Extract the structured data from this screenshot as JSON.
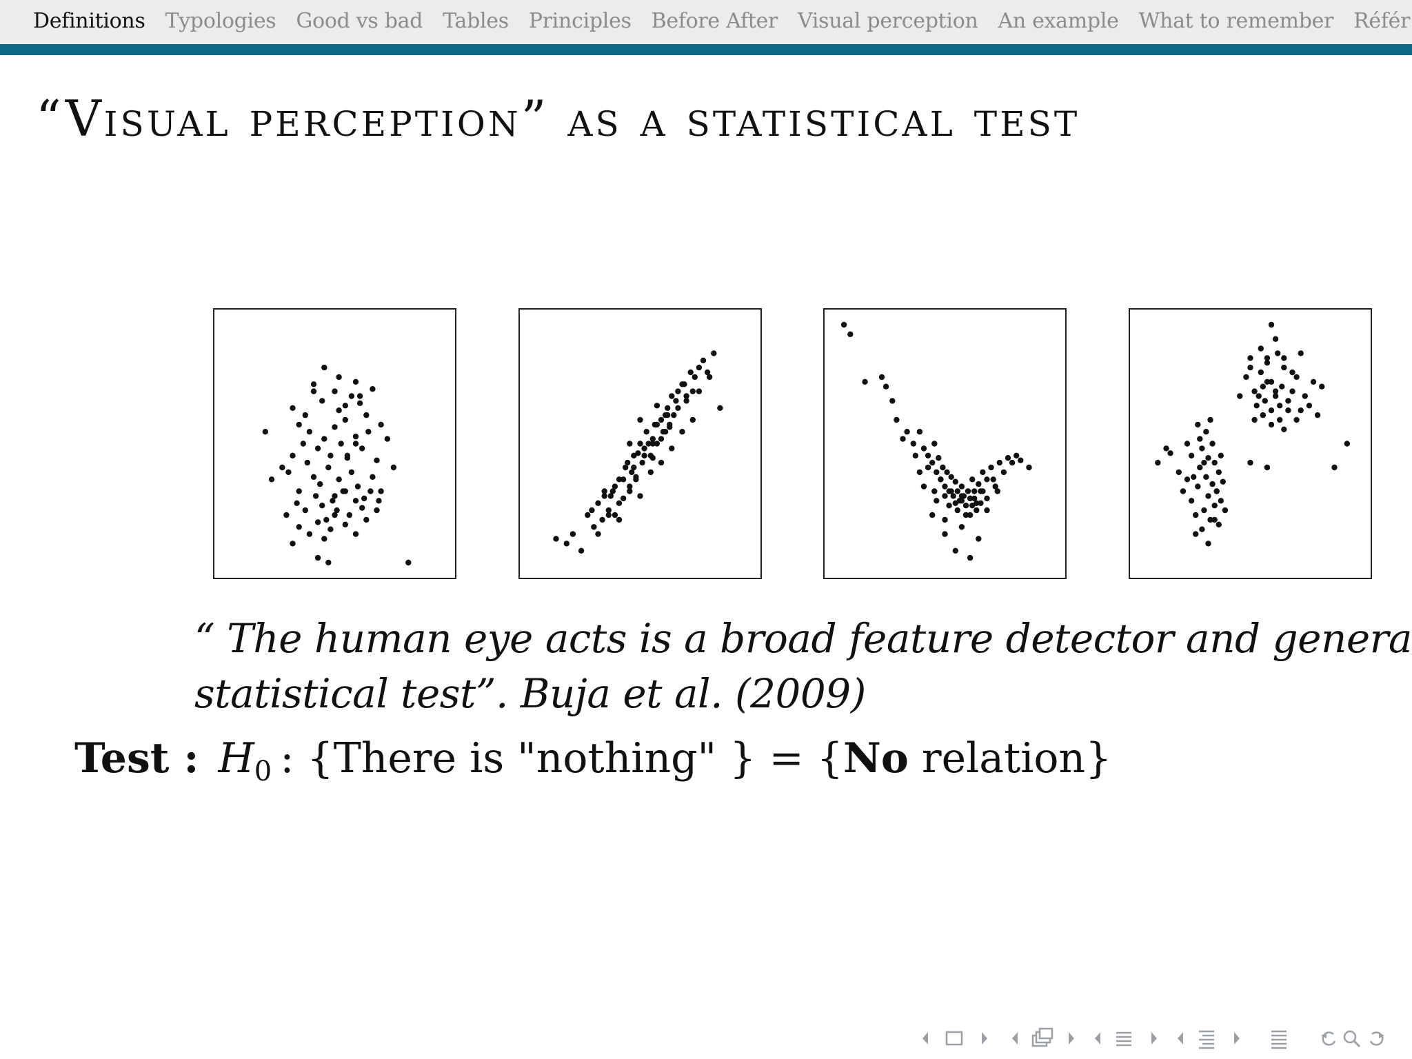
{
  "nav": {
    "items": [
      {
        "label": "Definitions",
        "active": true
      },
      {
        "label": "Typologies",
        "active": false
      },
      {
        "label": "Good vs bad",
        "active": false
      },
      {
        "label": "Tables",
        "active": false
      },
      {
        "label": "Principles",
        "active": false
      },
      {
        "label": "Before After",
        "active": false
      },
      {
        "label": "Visual perception",
        "active": false
      },
      {
        "label": "An example",
        "active": false
      },
      {
        "label": "What to remember",
        "active": false
      },
      {
        "label": "Référ",
        "active": false
      }
    ],
    "accent_color": "#0d6a86"
  },
  "slide": {
    "title": "“Visual perception” as a statistical test",
    "quote": {
      "line1": "“ The human eye acts is a broad feature detector and general",
      "line2": "statistical test”. Buja et al. (2009)"
    },
    "test": {
      "label": "Test :",
      "h_symbol": "H",
      "h_subscript": "0",
      "part1": ": {There is \"nothing\" } = {",
      "strong": "No",
      "part2": " relation}"
    }
  },
  "chart_data": [
    {
      "type": "scatter",
      "x": [
        0.17,
        0.3,
        0.33,
        0.4,
        0.45,
        0.44,
        0.5,
        0.52,
        0.55,
        0.58,
        0.6,
        0.62,
        0.65,
        0.68,
        0.72,
        0.25,
        0.3,
        0.35,
        0.38,
        0.42,
        0.45,
        0.48,
        0.5,
        0.53,
        0.56,
        0.6,
        0.63,
        0.66,
        0.7,
        0.75,
        0.2,
        0.28,
        0.33,
        0.37,
        0.4,
        0.43,
        0.47,
        0.5,
        0.52,
        0.55,
        0.58,
        0.61,
        0.64,
        0.68,
        0.72,
        0.78,
        0.27,
        0.32,
        0.36,
        0.41,
        0.44,
        0.46,
        0.49,
        0.51,
        0.54,
        0.57,
        0.6,
        0.63,
        0.67,
        0.71,
        0.33,
        0.38,
        0.42,
        0.45,
        0.48,
        0.5,
        0.55,
        0.6,
        0.65,
        0.7,
        0.3,
        0.42,
        0.47,
        0.36,
        0.4,
        0.52,
        0.55,
        0.62,
        0.85,
        0.56,
        0.6
      ],
      "y": [
        0.55,
        0.65,
        0.58,
        0.75,
        0.82,
        0.68,
        0.72,
        0.78,
        0.6,
        0.7,
        0.76,
        0.67,
        0.62,
        0.73,
        0.58,
        0.4,
        0.45,
        0.5,
        0.55,
        0.48,
        0.52,
        0.45,
        0.57,
        0.5,
        0.44,
        0.53,
        0.48,
        0.55,
        0.43,
        0.52,
        0.35,
        0.38,
        0.3,
        0.42,
        0.36,
        0.33,
        0.4,
        0.28,
        0.35,
        0.3,
        0.38,
        0.32,
        0.27,
        0.36,
        0.3,
        0.4,
        0.2,
        0.25,
        0.22,
        0.28,
        0.24,
        0.18,
        0.26,
        0.22,
        0.3,
        0.2,
        0.26,
        0.23,
        0.3,
        0.26,
        0.15,
        0.12,
        0.17,
        0.1,
        0.14,
        0.2,
        0.16,
        0.12,
        0.18,
        0.22,
        0.08,
        0.02,
        0.0,
        0.62,
        0.72,
        0.64,
        0.66,
        0.7,
        0.0,
        0.45,
        0.5
      ],
      "title": "",
      "xlabel": "",
      "ylabel": "",
      "grid": false
    },
    {
      "type": "scatter",
      "x": [
        0.1,
        0.15,
        0.18,
        0.22,
        0.25,
        0.28,
        0.3,
        0.32,
        0.33,
        0.35,
        0.37,
        0.38,
        0.4,
        0.42,
        0.43,
        0.45,
        0.46,
        0.47,
        0.48,
        0.5,
        0.51,
        0.52,
        0.53,
        0.55,
        0.56,
        0.57,
        0.58,
        0.6,
        0.61,
        0.62,
        0.63,
        0.64,
        0.65,
        0.66,
        0.68,
        0.7,
        0.72,
        0.74,
        0.75,
        0.76,
        0.78,
        0.8,
        0.82,
        0.85,
        0.3,
        0.35,
        0.4,
        0.45,
        0.5,
        0.55,
        0.6,
        0.65,
        0.7,
        0.75,
        0.27,
        0.36,
        0.42,
        0.47,
        0.52,
        0.56,
        0.6,
        0.64,
        0.68,
        0.72,
        0.33,
        0.38,
        0.44,
        0.49,
        0.54,
        0.58,
        0.63,
        0.67,
        0.71,
        0.78,
        0.83,
        0.88,
        0.4,
        0.48,
        0.56,
        0.62,
        0.5,
        0.58,
        0.45
      ],
      "y": [
        0.1,
        0.08,
        0.12,
        0.05,
        0.2,
        0.15,
        0.25,
        0.18,
        0.28,
        0.22,
        0.3,
        0.2,
        0.35,
        0.27,
        0.4,
        0.32,
        0.38,
        0.45,
        0.36,
        0.5,
        0.42,
        0.48,
        0.55,
        0.45,
        0.52,
        0.58,
        0.5,
        0.6,
        0.55,
        0.62,
        0.65,
        0.58,
        0.7,
        0.62,
        0.72,
        0.75,
        0.68,
        0.8,
        0.72,
        0.78,
        0.82,
        0.85,
        0.8,
        0.88,
        0.12,
        0.2,
        0.18,
        0.3,
        0.28,
        0.38,
        0.42,
        0.48,
        0.55,
        0.6,
        0.22,
        0.28,
        0.35,
        0.4,
        0.45,
        0.5,
        0.52,
        0.57,
        0.65,
        0.7,
        0.3,
        0.32,
        0.42,
        0.46,
        0.5,
        0.58,
        0.62,
        0.68,
        0.75,
        0.72,
        0.78,
        0.65,
        0.25,
        0.35,
        0.44,
        0.55,
        0.6,
        0.66,
        0.5
      ],
      "title": "",
      "xlabel": "",
      "ylabel": "",
      "grid": false
    },
    {
      "type": "scatter",
      "x": [
        0.02,
        0.05,
        0.12,
        0.2,
        0.22,
        0.25,
        0.27,
        0.3,
        0.32,
        0.35,
        0.38,
        0.4,
        0.42,
        0.44,
        0.45,
        0.46,
        0.47,
        0.48,
        0.49,
        0.5,
        0.51,
        0.52,
        0.53,
        0.54,
        0.55,
        0.56,
        0.57,
        0.58,
        0.59,
        0.6,
        0.61,
        0.62,
        0.63,
        0.64,
        0.65,
        0.66,
        0.67,
        0.68,
        0.7,
        0.72,
        0.74,
        0.76,
        0.78,
        0.8,
        0.82,
        0.84,
        0.86,
        0.9,
        0.4,
        0.45,
        0.5,
        0.55,
        0.6,
        0.65,
        0.7,
        0.36,
        0.42,
        0.48,
        0.53,
        0.58,
        0.63,
        0.68,
        0.73,
        0.44,
        0.5,
        0.56,
        0.62,
        0.67,
        0.38,
        0.46,
        0.52,
        0.58,
        0.64,
        0.7,
        0.75,
        0.5,
        0.58,
        0.66,
        0.55,
        0.62
      ],
      "y": [
        1.0,
        0.96,
        0.76,
        0.78,
        0.74,
        0.68,
        0.6,
        0.52,
        0.55,
        0.5,
        0.55,
        0.48,
        0.45,
        0.42,
        0.5,
        0.38,
        0.44,
        0.35,
        0.4,
        0.32,
        0.38,
        0.3,
        0.36,
        0.28,
        0.34,
        0.3,
        0.26,
        0.32,
        0.28,
        0.24,
        0.3,
        0.27,
        0.35,
        0.3,
        0.25,
        0.33,
        0.3,
        0.38,
        0.35,
        0.4,
        0.32,
        0.42,
        0.38,
        0.44,
        0.42,
        0.45,
        0.43,
        0.4,
        0.32,
        0.3,
        0.28,
        0.25,
        0.2,
        0.22,
        0.27,
        0.45,
        0.4,
        0.35,
        0.3,
        0.26,
        0.24,
        0.3,
        0.35,
        0.2,
        0.18,
        0.22,
        0.2,
        0.25,
        0.38,
        0.26,
        0.24,
        0.28,
        0.27,
        0.22,
        0.3,
        0.12,
        0.15,
        0.1,
        0.05,
        0.02
      ],
      "title": "",
      "xlabel": "",
      "ylabel": "",
      "grid": false
    },
    {
      "type": "scatter",
      "x": [
        0.06,
        0.1,
        0.12,
        0.16,
        0.18,
        0.2,
        0.2,
        0.22,
        0.22,
        0.24,
        0.25,
        0.26,
        0.27,
        0.28,
        0.29,
        0.3,
        0.3,
        0.31,
        0.32,
        0.33,
        0.33,
        0.34,
        0.35,
        0.35,
        0.36,
        0.37,
        0.38,
        0.24,
        0.27,
        0.3,
        0.33,
        0.26,
        0.29,
        0.32,
        0.25,
        0.31,
        0.28,
        0.34,
        0.23,
        0.36,
        0.45,
        0.48,
        0.5,
        0.52,
        0.53,
        0.55,
        0.56,
        0.57,
        0.58,
        0.6,
        0.6,
        0.62,
        0.63,
        0.64,
        0.65,
        0.66,
        0.68,
        0.7,
        0.72,
        0.74,
        0.76,
        0.78,
        0.8,
        0.82,
        0.84,
        0.55,
        0.58,
        0.62,
        0.66,
        0.7,
        0.74,
        0.52,
        0.56,
        0.6,
        0.64,
        0.68,
        0.54,
        0.58,
        0.62,
        0.66,
        0.5,
        0.72,
        0.6,
        0.5,
        0.58,
        0.9,
        0.96
      ],
      "y": [
        0.42,
        0.48,
        0.46,
        0.38,
        0.3,
        0.35,
        0.5,
        0.26,
        0.45,
        0.2,
        0.32,
        0.4,
        0.48,
        0.22,
        0.36,
        0.28,
        0.44,
        0.18,
        0.33,
        0.24,
        0.42,
        0.3,
        0.16,
        0.38,
        0.26,
        0.34,
        0.22,
        0.12,
        0.14,
        0.08,
        0.18,
        0.52,
        0.55,
        0.5,
        0.58,
        0.6,
        0.42,
        0.3,
        0.36,
        0.45,
        0.7,
        0.78,
        0.82,
        0.72,
        0.66,
        0.8,
        0.74,
        0.68,
        0.86,
        0.76,
        0.64,
        0.7,
        0.88,
        0.6,
        0.74,
        0.82,
        0.68,
        0.72,
        0.78,
        0.64,
        0.7,
        0.66,
        0.76,
        0.62,
        0.74,
        0.9,
        0.84,
        0.94,
        0.86,
        0.8,
        0.88,
        0.6,
        0.62,
        0.58,
        0.66,
        0.64,
        0.7,
        0.76,
        0.72,
        0.56,
        0.86,
        0.6,
        1.0,
        0.42,
        0.4,
        0.4,
        0.5
      ],
      "title": "",
      "xlabel": "",
      "ylabel": "",
      "grid": false
    }
  ],
  "footer_nav": {
    "icons": [
      "arrow-left-icon",
      "frame-icon",
      "arrow-right-icon",
      "arrow-left-icon",
      "subsection-icon",
      "arrow-right-icon",
      "arrow-left-icon",
      "section-icon",
      "arrow-right-icon",
      "arrow-left-icon",
      "subsection-list-icon",
      "arrow-right-icon",
      "toc-icon",
      "back-icon",
      "search-icon",
      "forward-icon"
    ]
  }
}
